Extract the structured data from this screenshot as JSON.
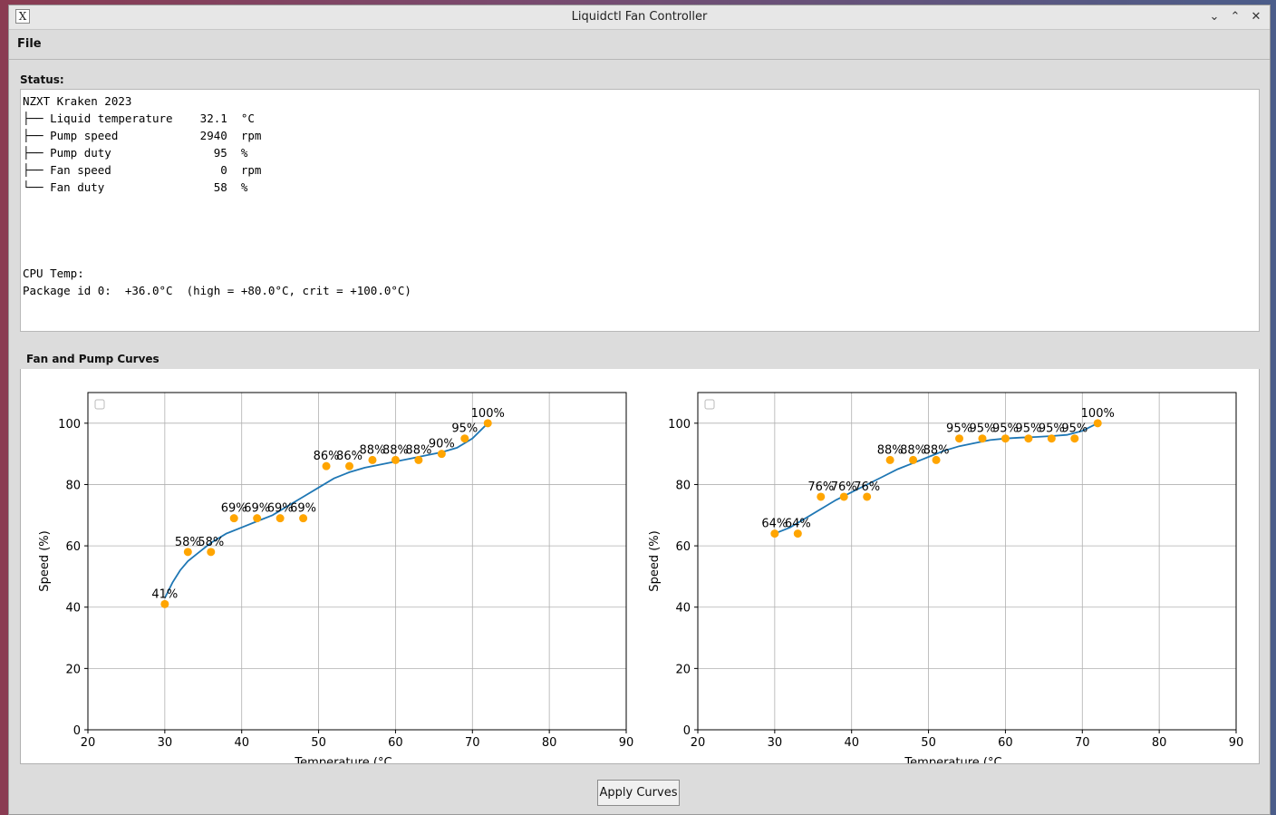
{
  "window": {
    "title": "Liquidctl Fan Controller",
    "minimize_glyph": "⌄",
    "maximize_glyph": "⌃",
    "close_glyph": "✕",
    "app_icon": "x-icon"
  },
  "menu": {
    "file": "File"
  },
  "status": {
    "label": "Status:",
    "text": "NZXT Kraken 2023\n├── Liquid temperature    32.1  °C\n├── Pump speed            2940  rpm\n├── Pump duty               95  %\n├── Fan speed                0  rpm\n└── Fan duty                58  %\n\n\n\n\nCPU Temp:\nPackage id 0:  +36.0°C  (high = +80.0°C, crit = +100.0°C)"
  },
  "curves": {
    "group_title": "Fan and Pump Curves"
  },
  "buttons": {
    "apply": "Apply Curves"
  },
  "chart_data": [
    {
      "type": "scatter",
      "xlabel": "Temperature (°C",
      "ylabel": "Speed (%)",
      "xlim": [
        20,
        90
      ],
      "ylim": [
        0,
        110
      ],
      "xticks": [
        20,
        30,
        40,
        50,
        60,
        70,
        80,
        90
      ],
      "yticks": [
        0,
        20,
        40,
        60,
        80,
        100
      ],
      "grid": true,
      "points": {
        "x": [
          30,
          33,
          36,
          39,
          42,
          45,
          48,
          51,
          54,
          57,
          60,
          63,
          66,
          69,
          72
        ],
        "y": [
          41,
          58,
          58,
          69,
          69,
          69,
          69,
          86,
          86,
          88,
          88,
          88,
          90,
          95,
          100
        ],
        "labels": [
          "41%",
          "58%",
          "58%",
          "69%",
          "69%",
          "69%",
          "69%",
          "86%",
          "86%",
          "88%",
          "88%",
          "88%",
          "90%",
          "95%",
          "100%"
        ],
        "color": "#ffa500"
      },
      "curve": {
        "x": [
          30,
          31,
          32,
          33,
          34,
          36,
          38,
          40,
          42,
          44,
          46,
          48,
          50,
          52,
          54,
          56,
          58,
          60,
          62,
          64,
          66,
          68,
          70,
          72
        ],
        "y": [
          43,
          48,
          52,
          55,
          57,
          61,
          64,
          66,
          68,
          70,
          73,
          76,
          79,
          82,
          84,
          85.5,
          86.5,
          87.5,
          88.5,
          89.5,
          90.5,
          92,
          95,
          100
        ],
        "color": "#1f77b4"
      }
    },
    {
      "type": "scatter",
      "xlabel": "Temperature (°C",
      "ylabel": "Speed (%)",
      "xlim": [
        20,
        90
      ],
      "ylim": [
        0,
        110
      ],
      "xticks": [
        20,
        30,
        40,
        50,
        60,
        70,
        80,
        90
      ],
      "yticks": [
        0,
        20,
        40,
        60,
        80,
        100
      ],
      "grid": true,
      "points": {
        "x": [
          30,
          33,
          36,
          39,
          42,
          45,
          48,
          51,
          54,
          57,
          60,
          63,
          66,
          69,
          72
        ],
        "y": [
          64,
          64,
          76,
          76,
          76,
          88,
          88,
          88,
          95,
          95,
          95,
          95,
          95,
          95,
          100
        ],
        "labels": [
          "64%",
          "64%",
          "76%",
          "76%",
          "76%",
          "88%",
          "88%",
          "88%",
          "95%",
          "95%",
          "95%",
          "95%",
          "95%",
          "95%",
          "100%"
        ],
        "color": "#ffa500"
      },
      "curve": {
        "x": [
          30,
          32,
          34,
          36,
          38,
          40,
          42,
          44,
          46,
          48,
          50,
          52,
          54,
          56,
          58,
          60,
          62,
          64,
          66,
          68,
          70,
          72
        ],
        "y": [
          64,
          66,
          69,
          72,
          75,
          77.5,
          80,
          82.5,
          85,
          87,
          89,
          91,
          92.5,
          93.5,
          94.5,
          95,
          95.3,
          95.5,
          95.8,
          96.2,
          97.5,
          100
        ],
        "color": "#1f77b4"
      }
    }
  ]
}
